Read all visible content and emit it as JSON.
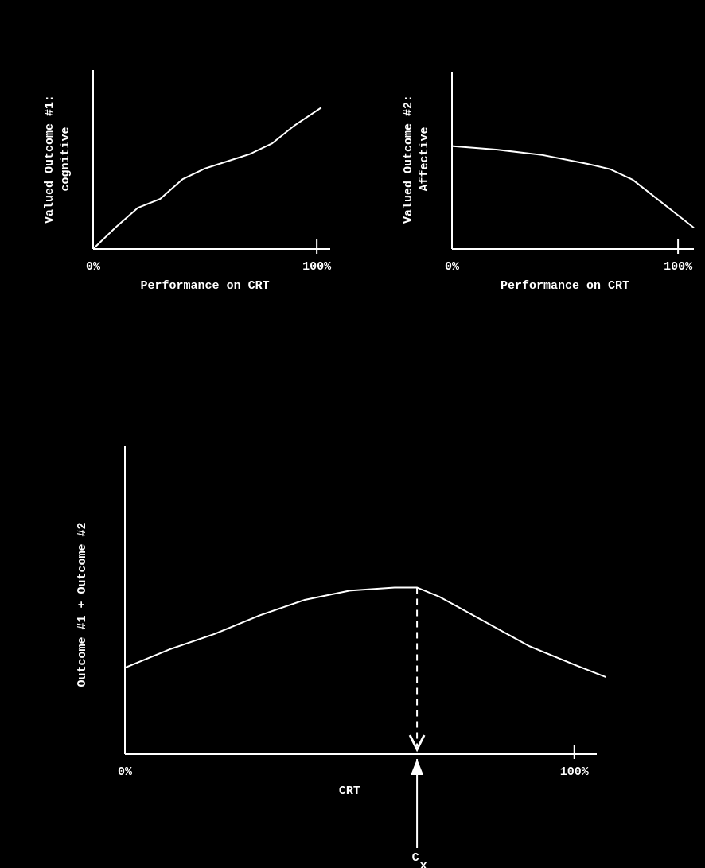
{
  "chart_data": [
    {
      "type": "line",
      "ylabel": [
        "Valued Outcome #1:",
        "cognitive"
      ],
      "xlabel": "Performance on CRT",
      "xlim": [
        0,
        106
      ],
      "ylim": [
        0,
        100
      ],
      "xticks": [
        {
          "value": 0,
          "label": "0%"
        },
        {
          "value": 100,
          "label": "100%"
        }
      ],
      "color": "#ffffff",
      "x": [
        0,
        10,
        20,
        30,
        40,
        50,
        60,
        70,
        80,
        90,
        102
      ],
      "values": [
        0,
        12,
        23,
        28,
        39,
        45,
        49,
        53,
        59,
        69,
        79
      ]
    },
    {
      "type": "line",
      "ylabel": [
        "Valued Outcome #2:",
        "Affective"
      ],
      "xlabel": "Performance on CRT",
      "xlim": [
        0,
        107
      ],
      "ylim": [
        0,
        100
      ],
      "xticks": [
        {
          "value": 0,
          "label": "0%"
        },
        {
          "value": 100,
          "label": "100%"
        }
      ],
      "color": "#ffffff",
      "x": [
        0,
        20,
        40,
        60,
        70,
        80,
        90,
        100,
        107
      ],
      "values": [
        58,
        56,
        53,
        48,
        45,
        39,
        29,
        19,
        12
      ]
    },
    {
      "type": "line",
      "ylabel": [
        "Outcome #1 + Outcome #2"
      ],
      "xlabel": "CRT",
      "xlim": [
        0,
        105
      ],
      "ylim": [
        0,
        100
      ],
      "xticks": [
        {
          "value": 0,
          "label": "0%"
        },
        {
          "value": 100,
          "label": "100%"
        }
      ],
      "color": "#ffffff",
      "x": [
        0,
        10,
        20,
        30,
        40,
        50,
        60,
        65,
        70,
        80,
        90,
        100,
        107
      ],
      "values": [
        28,
        34,
        39,
        45,
        50,
        53,
        54,
        54,
        51,
        43,
        35,
        29,
        25
      ],
      "marker_x": 65,
      "marker_label": "C",
      "marker_subscript": "x"
    }
  ]
}
